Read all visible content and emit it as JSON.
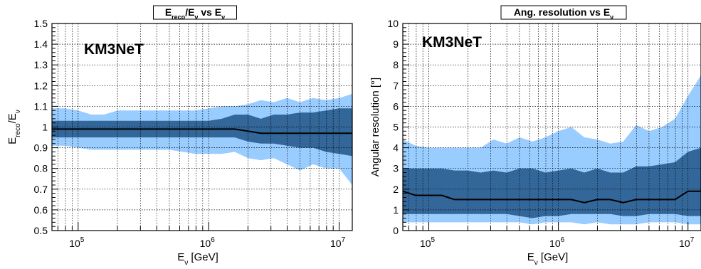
{
  "chart_data": [
    {
      "type": "area",
      "title": {
        "base": "E",
        "sub": "reco",
        "mid": "/E",
        "sub2": "ν",
        "tail": " vs E",
        "sub3": "ν"
      },
      "watermark": "KM3NeT",
      "xlabel": {
        "base": "E",
        "sub": "ν",
        "tail": " [GeV]"
      },
      "ylabel": {
        "base": "E",
        "sub": "reco",
        "mid": "/E",
        "sub2": "ν"
      },
      "xscale": "log",
      "xlim": [
        63000,
        12600000
      ],
      "ylim": [
        0.5,
        1.5
      ],
      "y_ticks": [
        0.5,
        0.6,
        0.7,
        0.8,
        0.9,
        1.0,
        1.1,
        1.2,
        1.3,
        1.4,
        1.5
      ],
      "y_tick_labels": [
        "0.5",
        "0.6",
        "0.7",
        "0.8",
        "0.9",
        "1",
        "1.1",
        "1.2",
        "1.3",
        "1.4",
        "1.5"
      ],
      "x_tick_labels": [
        {
          "value": 100000,
          "base": "10",
          "exp": "5"
        },
        {
          "value": 1000000,
          "base": "10",
          "exp": "6"
        },
        {
          "value": 10000000,
          "base": "10",
          "exp": "7"
        }
      ],
      "grid": true,
      "colors": {
        "outer_band": "#99ccff",
        "inner_band": "#336699",
        "median": "#000000"
      },
      "x": [
        63000,
        79000,
        100000,
        126000,
        158000,
        200000,
        251000,
        316000,
        398000,
        501000,
        631000,
        794000,
        1000000,
        1259000,
        1585000,
        1995000,
        2512000,
        3162000,
        3981000,
        5012000,
        6310000,
        7943000,
        10000000,
        12600000
      ],
      "outer_low": [
        0.91,
        0.91,
        0.9,
        0.89,
        0.89,
        0.89,
        0.89,
        0.89,
        0.89,
        0.89,
        0.88,
        0.87,
        0.87,
        0.87,
        0.88,
        0.85,
        0.84,
        0.85,
        0.82,
        0.79,
        0.82,
        0.8,
        0.8,
        0.72
      ],
      "inner_low": [
        0.95,
        0.95,
        0.95,
        0.95,
        0.95,
        0.95,
        0.95,
        0.95,
        0.95,
        0.95,
        0.95,
        0.95,
        0.95,
        0.95,
        0.95,
        0.93,
        0.92,
        0.92,
        0.91,
        0.9,
        0.9,
        0.88,
        0.87,
        0.86
      ],
      "median": [
        0.99,
        0.99,
        0.99,
        0.99,
        0.99,
        0.99,
        0.99,
        0.99,
        0.99,
        0.99,
        0.99,
        0.99,
        0.99,
        0.99,
        0.99,
        0.98,
        0.97,
        0.97,
        0.97,
        0.97,
        0.97,
        0.97,
        0.97,
        0.97
      ],
      "inner_high": [
        1.03,
        1.03,
        1.03,
        1.03,
        1.03,
        1.03,
        1.03,
        1.03,
        1.03,
        1.03,
        1.03,
        1.03,
        1.03,
        1.04,
        1.06,
        1.06,
        1.04,
        1.06,
        1.06,
        1.07,
        1.07,
        1.08,
        1.09,
        1.09
      ],
      "outer_high": [
        1.09,
        1.09,
        1.08,
        1.06,
        1.06,
        1.08,
        1.08,
        1.08,
        1.08,
        1.08,
        1.08,
        1.08,
        1.09,
        1.1,
        1.1,
        1.11,
        1.13,
        1.12,
        1.14,
        1.12,
        1.14,
        1.13,
        1.14,
        1.16
      ]
    },
    {
      "type": "area",
      "title": {
        "base": "Ang. resolution vs E",
        "sub": "ν"
      },
      "watermark": "KM3NeT",
      "xlabel": {
        "base": "E",
        "sub": "ν",
        "tail": " [GeV]"
      },
      "ylabel": {
        "base": "Angular resolution [°]"
      },
      "xscale": "log",
      "xlim": [
        63000,
        12600000
      ],
      "ylim": [
        0,
        10
      ],
      "y_ticks": [
        0,
        1,
        2,
        3,
        4,
        5,
        6,
        7,
        8,
        9,
        10
      ],
      "y_tick_labels": [
        "0",
        "1",
        "2",
        "3",
        "4",
        "5",
        "6",
        "7",
        "8",
        "9",
        "10"
      ],
      "x_tick_labels": [
        {
          "value": 100000,
          "base": "10",
          "exp": "5"
        },
        {
          "value": 1000000,
          "base": "10",
          "exp": "6"
        },
        {
          "value": 10000000,
          "base": "10",
          "exp": "7"
        }
      ],
      "grid": true,
      "colors": {
        "outer_band": "#99ccff",
        "inner_band": "#336699",
        "median": "#000000"
      },
      "x": [
        63000,
        79000,
        100000,
        126000,
        158000,
        200000,
        251000,
        316000,
        398000,
        501000,
        631000,
        794000,
        1000000,
        1259000,
        1585000,
        1995000,
        2512000,
        3162000,
        3981000,
        5012000,
        6310000,
        7943000,
        10000000,
        12600000
      ],
      "outer_low": [
        0.4,
        0.4,
        0.4,
        0.4,
        0.4,
        0.4,
        0.4,
        0.4,
        0.4,
        0.4,
        0.3,
        0.4,
        0.4,
        0.4,
        0.3,
        0.4,
        0.3,
        0.3,
        0.3,
        0.4,
        0.4,
        0.4,
        0.3,
        0.3
      ],
      "inner_low": [
        0.8,
        0.8,
        0.8,
        0.8,
        0.8,
        0.8,
        0.8,
        0.8,
        0.8,
        0.7,
        0.6,
        0.7,
        0.7,
        0.8,
        0.8,
        0.8,
        0.8,
        0.7,
        0.7,
        0.8,
        0.8,
        0.8,
        0.7,
        0.7
      ],
      "median": [
        1.9,
        1.7,
        1.7,
        1.7,
        1.5,
        1.5,
        1.5,
        1.5,
        1.5,
        1.5,
        1.5,
        1.5,
        1.5,
        1.5,
        1.35,
        1.5,
        1.5,
        1.35,
        1.5,
        1.5,
        1.5,
        1.5,
        1.9,
        1.9
      ],
      "inner_high": [
        3.0,
        3.0,
        3.0,
        3.0,
        2.9,
        2.9,
        2.8,
        2.9,
        2.8,
        3.0,
        3.0,
        2.8,
        2.9,
        3.0,
        2.8,
        3.0,
        2.8,
        2.8,
        3.1,
        3.1,
        3.2,
        3.3,
        3.8,
        4.0
      ],
      "outer_high": [
        4.4,
        4.1,
        4.0,
        4.0,
        4.0,
        4.0,
        4.0,
        4.4,
        4.2,
        4.5,
        4.3,
        4.5,
        4.8,
        5.0,
        4.5,
        4.4,
        4.2,
        4.3,
        5.1,
        4.8,
        5.0,
        5.4,
        6.5,
        7.5
      ]
    }
  ]
}
